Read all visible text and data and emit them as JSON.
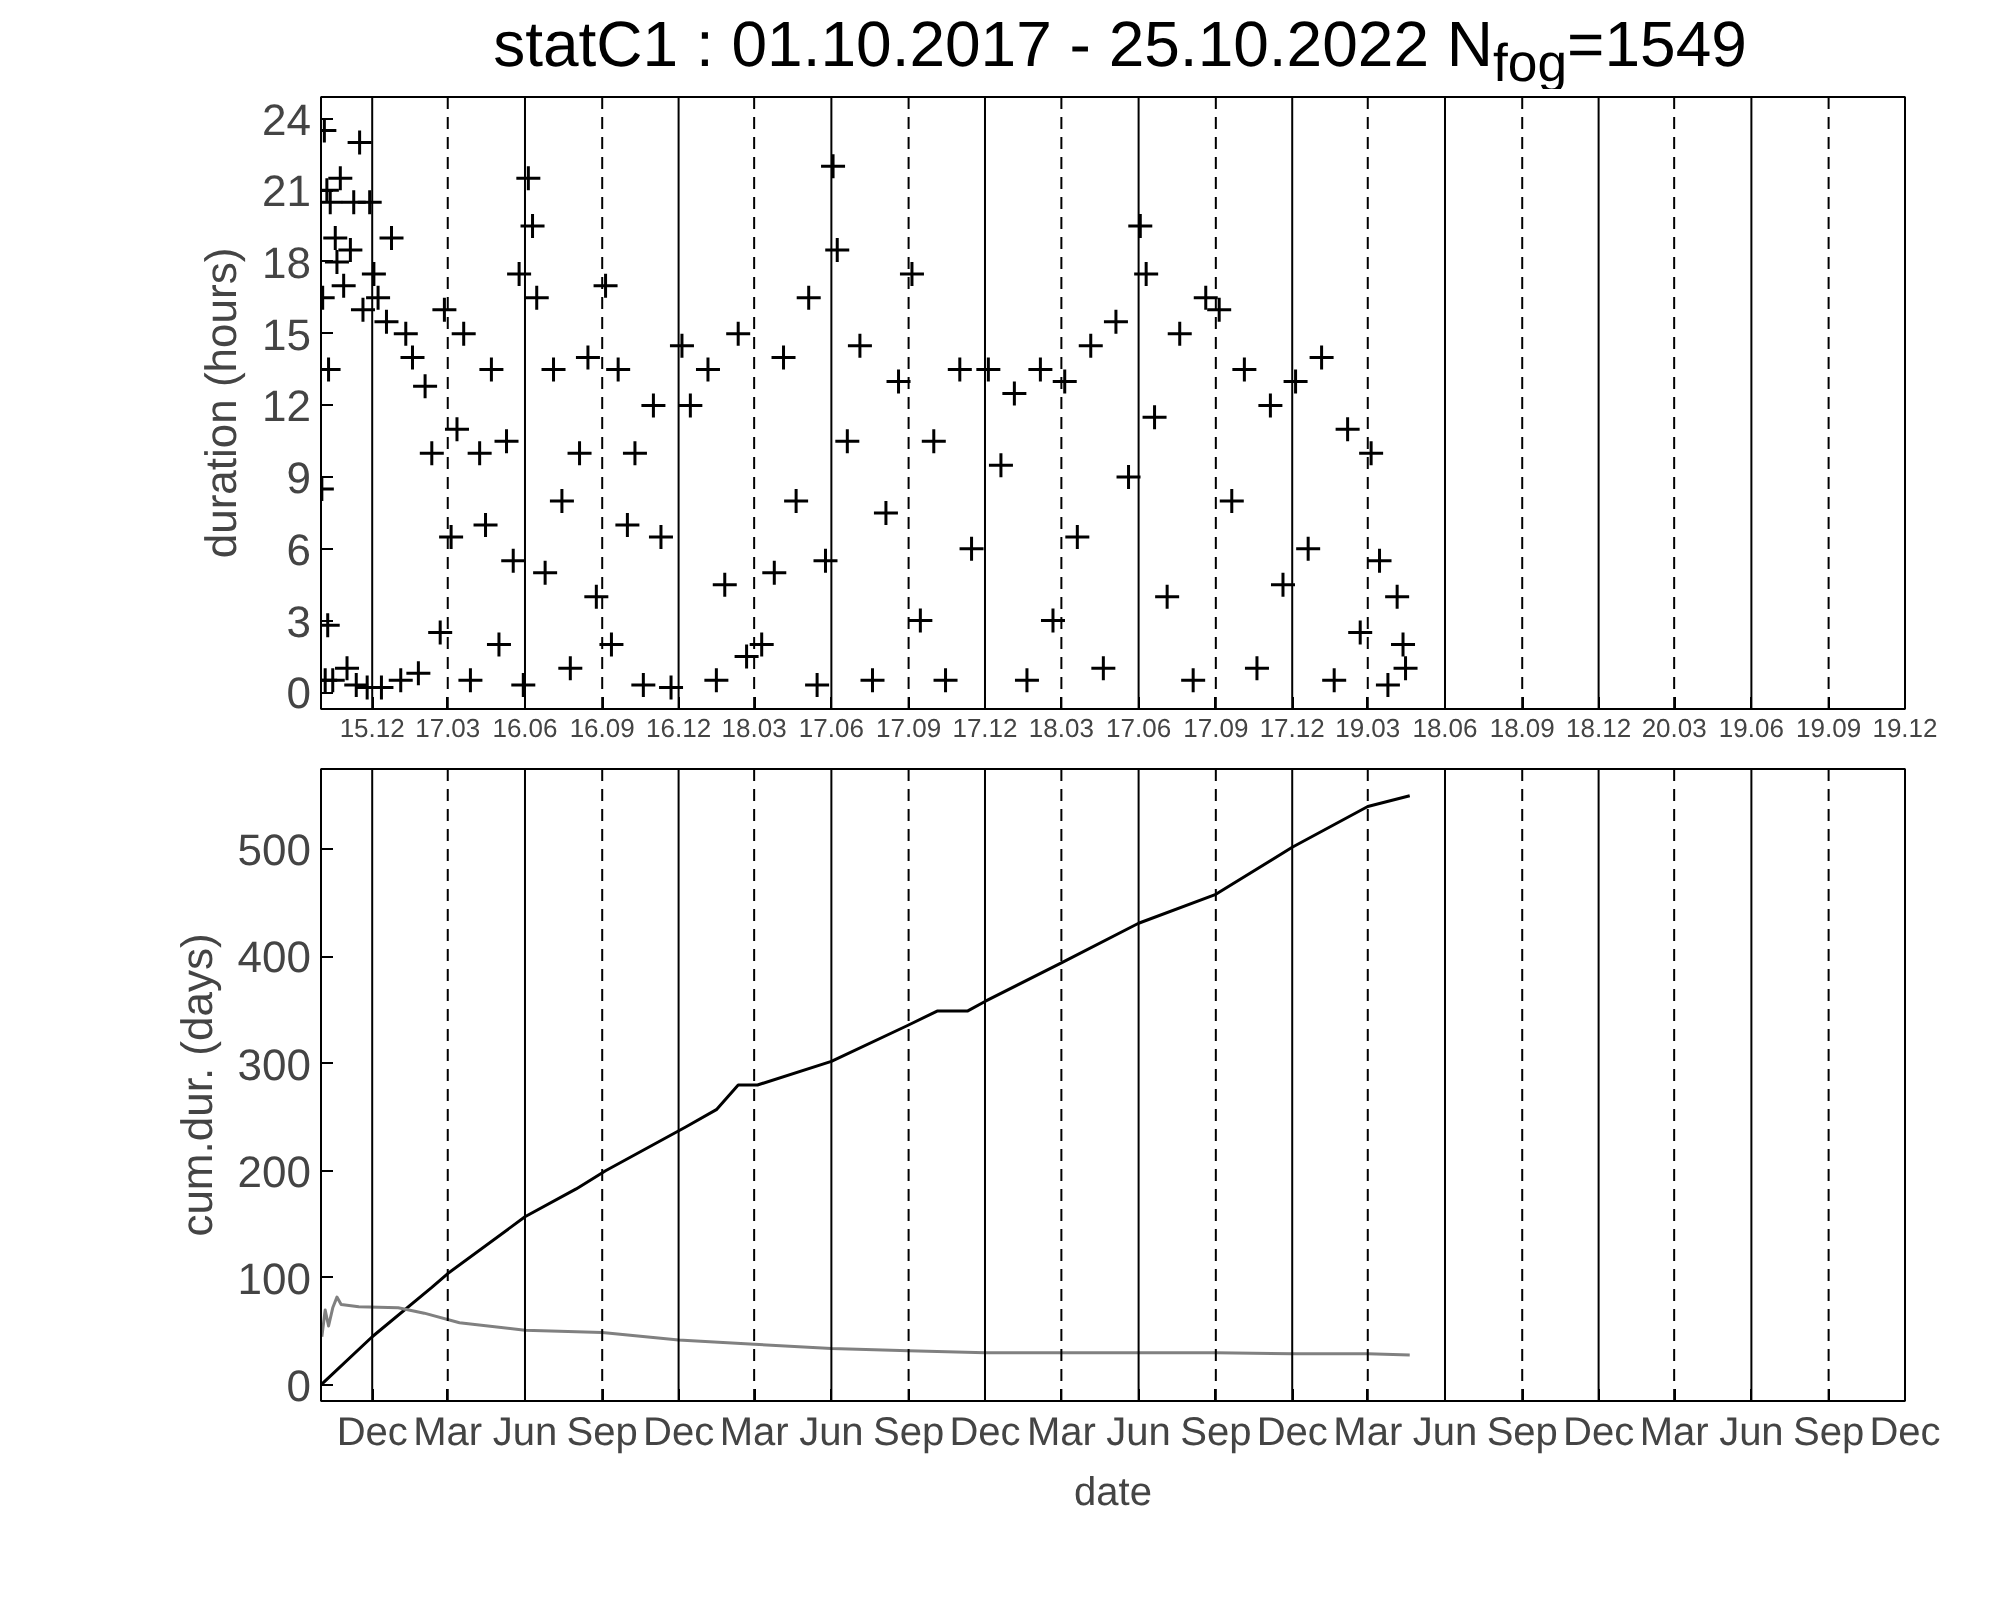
{
  "chart_data": [
    {
      "type": "scatter",
      "title": "statC1 : 01.10.2017 - 25.10.2022 N$_{fog}$=1549",
      "ylabel": "duration (hours)",
      "marker": "cross",
      "grid": "x",
      "color": "#000000",
      "x": [
        "2017-10-02",
        "2017-10-03",
        "2017-10-05",
        "2017-10-06",
        "2017-10-08",
        "2017-10-09",
        "2017-10-10",
        "2017-10-12",
        "2017-10-15",
        "2017-10-18",
        "2017-10-20",
        "2017-10-24",
        "2017-10-28",
        "2017-11-01",
        "2017-11-05",
        "2017-11-09",
        "2017-11-12",
        "2017-11-16",
        "2017-11-20",
        "2017-11-25",
        "2017-11-28",
        "2017-12-03",
        "2017-12-08",
        "2017-12-12",
        "2017-12-18",
        "2017-12-24",
        "2018-01-04",
        "2018-01-10",
        "2018-01-18",
        "2018-01-25",
        "2018-02-02",
        "2018-02-10",
        "2018-02-20",
        "2018-02-25",
        "2018-03-05",
        "2018-03-12",
        "2018-03-20",
        "2018-03-28",
        "2018-04-08",
        "2018-04-15",
        "2018-04-22",
        "2018-05-01",
        "2018-05-10",
        "2018-05-18",
        "2018-05-25",
        "2018-05-30",
        "2018-06-05",
        "2018-06-10",
        "2018-06-15",
        "2018-06-25",
        "2018-07-05",
        "2018-07-15",
        "2018-07-25",
        "2018-08-05",
        "2018-08-15",
        "2018-08-25",
        "2018-09-05",
        "2018-09-12",
        "2018-09-20",
        "2018-10-01",
        "2018-10-10",
        "2018-10-20",
        "2018-11-01",
        "2018-11-10",
        "2018-11-22",
        "2018-12-05",
        "2018-12-15",
        "2019-01-05",
        "2019-01-15",
        "2019-01-25",
        "2019-02-10",
        "2019-02-20",
        "2019-03-10",
        "2019-03-25",
        "2019-04-05",
        "2019-04-20",
        "2019-05-05",
        "2019-05-15",
        "2019-05-25",
        "2019-06-03",
        "2019-06-08",
        "2019-06-20",
        "2019-07-05",
        "2019-07-20",
        "2019-08-05",
        "2019-08-20",
        "2019-09-05",
        "2019-09-15",
        "2019-10-01",
        "2019-10-15",
        "2019-11-01",
        "2019-11-15",
        "2019-12-05",
        "2019-12-20",
        "2020-01-05",
        "2020-01-20",
        "2020-02-05",
        "2020-02-20",
        "2020-03-05",
        "2020-03-20",
        "2020-04-05",
        "2020-04-20",
        "2020-05-05",
        "2020-05-20",
        "2020-06-03",
        "2020-06-10",
        "2020-06-20",
        "2020-07-05",
        "2020-07-20",
        "2020-08-05",
        "2020-08-20",
        "2020-09-05",
        "2020-09-20",
        "2020-10-05",
        "2020-10-20",
        "2020-11-05",
        "2020-11-20",
        "2020-12-05",
        "2020-12-20",
        "2021-01-05",
        "2021-01-20",
        "2021-02-05",
        "2021-02-20",
        "2021-03-05",
        "2021-03-15",
        "2021-03-25",
        "2021-04-05",
        "2021-04-12",
        "2021-04-15"
      ],
      "values": [
        8.5,
        16.5,
        23.5,
        0.5,
        21,
        2.8,
        13.5,
        20.5,
        0.5,
        19,
        18,
        21.5,
        17,
        1,
        18.5,
        20.5,
        0.3,
        23,
        16,
        0.2,
        20.5,
        17.5,
        16.5,
        0.2,
        15.5,
        19,
        0.5,
        15,
        14,
        0.8,
        12.8,
        10,
        2.5,
        16,
        6.5,
        11,
        15,
        0.5,
        10,
        7,
        13.5,
        2,
        10.5,
        5.5,
        17.5,
        0.3,
        21.5,
        19.5,
        16.5,
        5,
        13.5,
        8,
        1,
        10,
        14,
        4,
        17,
        2,
        13.5,
        7,
        10,
        0.3,
        12,
        6.5,
        0.2,
        14.5,
        12,
        13.5,
        0.5,
        4.5,
        15,
        1.5,
        2,
        5,
        14,
        8,
        16.5,
        0.3,
        5.5,
        22,
        18.5,
        10.5,
        14.5,
        0.5,
        7.5,
        13,
        17.5,
        3,
        10.5,
        0.5,
        13.5,
        6,
        13.5,
        9.5,
        12.5,
        0.5,
        13.5,
        3,
        13,
        6.5,
        14.5,
        1,
        15.5,
        9,
        19.5,
        17.5,
        11.5,
        4,
        15,
        0.5,
        16.5,
        16,
        8,
        13.5,
        1,
        12,
        4.5,
        13,
        6,
        14,
        0.5,
        11,
        2.5,
        10,
        5.5,
        0.3,
        4,
        2,
        1
      ],
      "xlim": [
        "2017-10-01",
        "2022-12-01"
      ],
      "ylim": [
        -0.7,
        24.9
      ],
      "yticks": [
        0,
        3,
        6,
        9,
        12,
        15,
        18,
        21,
        24
      ],
      "xticks": [
        {
          "value": "2017-12-01",
          "label": "15.12"
        },
        {
          "value": "2018-03-01",
          "label": "17.03"
        },
        {
          "value": "2018-06-01",
          "label": "16.06"
        },
        {
          "value": "2018-09-01",
          "label": "16.09"
        },
        {
          "value": "2018-12-01",
          "label": "16.12"
        },
        {
          "value": "2019-03-01",
          "label": "18.03"
        },
        {
          "value": "2019-06-01",
          "label": "17.06"
        },
        {
          "value": "2019-09-01",
          "label": "17.09"
        },
        {
          "value": "2019-12-01",
          "label": "17.12"
        },
        {
          "value": "2020-03-01",
          "label": "18.03"
        },
        {
          "value": "2020-06-01",
          "label": "17.06"
        },
        {
          "value": "2020-09-01",
          "label": "17.09"
        },
        {
          "value": "2020-12-01",
          "label": "17.12"
        },
        {
          "value": "2021-03-01",
          "label": "19.03"
        },
        {
          "value": "2021-06-01",
          "label": "18.06"
        },
        {
          "value": "2021-09-01",
          "label": "18.09"
        },
        {
          "value": "2021-12-01",
          "label": "18.12"
        },
        {
          "value": "2022-03-01",
          "label": "20.03"
        },
        {
          "value": "2022-06-01",
          "label": "19.06"
        },
        {
          "value": "2022-09-01",
          "label": "19.09"
        },
        {
          "value": "2022-12-01",
          "label": "19.12"
        }
      ]
    },
    {
      "type": "line",
      "ylabel": "cum.dur. (days)",
      "xlabel": "date",
      "grid": "x",
      "series": [
        {
          "color": "#000000",
          "x": [
            "2017-10-01",
            "2017-12-01",
            "2018-02-10",
            "2018-03-01",
            "2018-06-01",
            "2018-08-01",
            "2018-09-05",
            "2018-12-10",
            "2019-01-15",
            "2019-02-10",
            "2019-03-05",
            "2019-06-01",
            "2019-09-01",
            "2019-10-05",
            "2019-11-10",
            "2019-12-01",
            "2020-03-01",
            "2020-06-01",
            "2020-09-01",
            "2020-12-01",
            "2021-03-01",
            "2021-04-20"
          ],
          "values": [
            0,
            45,
            91,
            104,
            157,
            183,
            200,
            241,
            257,
            280,
            280,
            302,
            336,
            349,
            349,
            358,
            394,
            431,
            458,
            502,
            540,
            550
          ]
        },
        {
          "color": "#808080",
          "x": [
            "2017-10-02",
            "2017-10-06",
            "2017-10-10",
            "2017-10-15",
            "2017-10-20",
            "2017-10-25",
            "2017-11-15",
            "2018-01-01",
            "2018-02-01",
            "2018-03-15",
            "2018-06-01",
            "2018-09-01",
            "2018-12-01",
            "2019-03-01",
            "2019-06-01",
            "2019-09-01",
            "2019-12-01",
            "2020-03-01",
            "2020-06-01",
            "2020-09-01",
            "2020-12-01",
            "2021-03-01",
            "2021-04-20"
          ],
          "values": [
            45,
            70,
            55,
            72,
            82,
            75,
            73,
            72,
            67,
            58,
            51,
            49,
            42,
            38,
            34,
            32,
            30,
            30,
            30,
            30,
            29,
            29,
            28
          ]
        }
      ],
      "xlim": [
        "2017-10-01",
        "2022-12-01"
      ],
      "ylim": [
        -15,
        575
      ],
      "yticks": [
        0,
        100,
        200,
        300,
        400,
        500
      ],
      "xticks": [
        {
          "value": "2017-12-01",
          "label": "Dec"
        },
        {
          "value": "2018-03-01",
          "label": "Mar"
        },
        {
          "value": "2018-06-01",
          "label": "Jun"
        },
        {
          "value": "2018-09-01",
          "label": "Sep"
        },
        {
          "value": "2018-12-01",
          "label": "Dec"
        },
        {
          "value": "2019-03-01",
          "label": "Mar"
        },
        {
          "value": "2019-06-01",
          "label": "Jun"
        },
        {
          "value": "2019-09-01",
          "label": "Sep"
        },
        {
          "value": "2019-12-01",
          "label": "Dec"
        },
        {
          "value": "2020-03-01",
          "label": "Mar"
        },
        {
          "value": "2020-06-01",
          "label": "Jun"
        },
        {
          "value": "2020-09-01",
          "label": "Sep"
        },
        {
          "value": "2020-12-01",
          "label": "Dec"
        },
        {
          "value": "2021-03-01",
          "label": "Mar"
        },
        {
          "value": "2021-06-01",
          "label": "Jun"
        },
        {
          "value": "2021-09-01",
          "label": "Sep"
        },
        {
          "value": "2021-12-01",
          "label": "Dec"
        },
        {
          "value": "2022-03-01",
          "label": "Mar"
        },
        {
          "value": "2022-06-01",
          "label": "Jun"
        },
        {
          "value": "2022-09-01",
          "label": "Sep"
        },
        {
          "value": "2022-12-01",
          "label": "Dec"
        }
      ]
    }
  ]
}
